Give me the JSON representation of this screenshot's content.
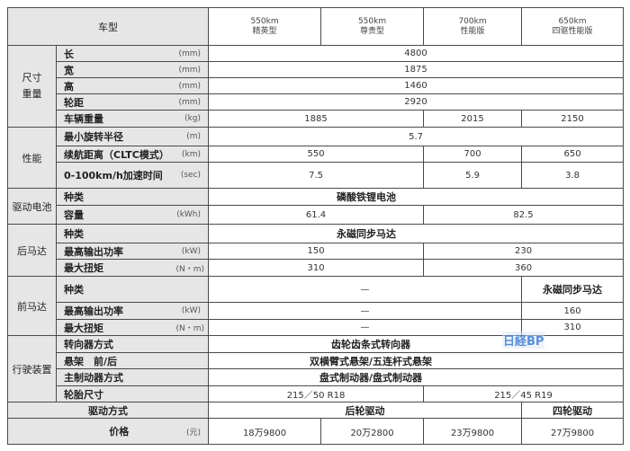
{
  "header": {
    "label": "车型",
    "models": [
      {
        "range": "550km",
        "trim": "精英型"
      },
      {
        "range": "550km",
        "trim": "尊贵型"
      },
      {
        "range": "700km",
        "trim": "性能版"
      },
      {
        "range": "650km",
        "trim": "四驱性能版"
      }
    ]
  },
  "size": {
    "group": "尺寸\n重量",
    "length": {
      "label": "长",
      "unit": "(mm)",
      "value": "4800"
    },
    "width": {
      "label": "宽",
      "unit": "(mm)",
      "value": "1875"
    },
    "height": {
      "label": "高",
      "unit": "(mm)",
      "value": "1460"
    },
    "wheelbase": {
      "label": "轮距",
      "unit": "(mm)",
      "value": "2920"
    },
    "weight": {
      "label": "车辆重量",
      "unit": "(kg)",
      "values": [
        "1885",
        "2015",
        "2150"
      ]
    }
  },
  "performance": {
    "group": "性能",
    "turning": {
      "label": "最小旋转半径",
      "unit": "(m)",
      "value": "5.7"
    },
    "range": {
      "label": "续航距离（CLTC模式）",
      "unit": "(km)",
      "values": [
        "550",
        "700",
        "650"
      ]
    },
    "accel": {
      "label": "0-100km/h加速时间",
      "unit": "(sec)",
      "values": [
        "7.5",
        "5.9",
        "3.8"
      ]
    }
  },
  "battery": {
    "group": "驱动电池",
    "type": {
      "label": "种类",
      "value": "磷酸铁锂电池"
    },
    "capacity": {
      "label": "容量",
      "unit": "(kWh)",
      "values": [
        "61.4",
        "82.5"
      ]
    }
  },
  "rear_motor": {
    "group": "后马达",
    "type": {
      "label": "种类",
      "value": "永磁同步马达"
    },
    "power": {
      "label": "最高输出功率",
      "unit": "(kW)",
      "values": [
        "150",
        "230"
      ]
    },
    "torque": {
      "label": "最大扭矩",
      "unit": "(N・m)",
      "values": [
        "310",
        "360"
      ]
    }
  },
  "front_motor": {
    "group": "前马达",
    "type": {
      "label": "种类",
      "values": [
        "—",
        "永磁同步马达"
      ]
    },
    "power": {
      "label": "最高输出功率",
      "unit": "(kW)",
      "values": [
        "—",
        "160"
      ]
    },
    "torque": {
      "label": "最大扭矩",
      "unit": "(N・m)",
      "values": [
        "—",
        "310"
      ]
    }
  },
  "chassis": {
    "group": "行驶装置",
    "steering": {
      "label": "转向器方式",
      "value": "齿轮齿条式转向器"
    },
    "suspension": {
      "label": "悬架　前/后",
      "value": "双横臂式悬架/五连杆式悬架"
    },
    "brakes": {
      "label": "主制动器方式",
      "value": "盘式制动器/盘式制动器"
    },
    "tires": {
      "label": "轮胎尺寸",
      "values": [
        "215／50 R18",
        "215／45 R19"
      ]
    }
  },
  "drive": {
    "label": "驱动方式",
    "values": [
      "后轮驱动",
      "四轮驱动"
    ]
  },
  "price": {
    "label": "价格",
    "unit": "(元)",
    "values": [
      "18万9800",
      "20万2800",
      "23万9800",
      "27万9800"
    ]
  },
  "watermark": "日経BP"
}
